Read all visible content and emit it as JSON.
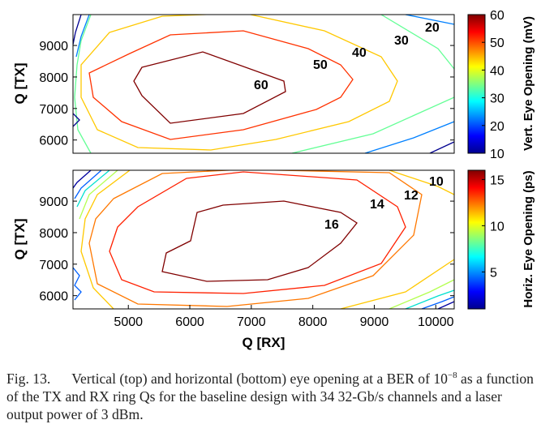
{
  "chart_data": [
    {
      "type": "contour",
      "panel": "top",
      "xlabel": "",
      "ylabel": "Q [TX]",
      "xlim": [
        4100,
        10300
      ],
      "ylim": [
        5580,
        9980
      ],
      "xticks": [],
      "yticks": [
        "6000",
        "7000",
        "8000",
        "9000"
      ],
      "colorbar": {
        "label": "Vert. Eye Opening (mV)",
        "range": [
          10,
          60
        ],
        "ticks": [
          "10",
          "20",
          "30",
          "40",
          "50",
          "60"
        ]
      },
      "contour_levels": [
        {
          "level": 60,
          "label": "60",
          "color": "#800000"
        },
        {
          "level": 50,
          "label": "50",
          "color": "#ff3200"
        },
        {
          "level": 40,
          "label": "40",
          "color": "#ffc800"
        },
        {
          "level": 30,
          "label": "30",
          "color": "#64ff96"
        },
        {
          "level": 20,
          "label": "20",
          "color": "#0080ff"
        },
        {
          "level": 10,
          "label": "",
          "color": "#000090"
        }
      ]
    },
    {
      "type": "contour",
      "panel": "bottom",
      "xlabel": "Q [RX]",
      "ylabel": "Q [TX]",
      "xlim": [
        4100,
        10300
      ],
      "ylim": [
        5580,
        9980
      ],
      "xticks": [
        "5000",
        "6000",
        "7000",
        "8000",
        "9000",
        "10000"
      ],
      "yticks": [
        "6000",
        "7000",
        "8000",
        "9000"
      ],
      "colorbar": {
        "label": "Horiz. Eye Opening (ps)",
        "range": [
          1,
          16
        ],
        "ticks": [
          "5",
          "10",
          "15"
        ]
      },
      "contour_levels": [
        {
          "level": 16,
          "label": "16",
          "color": "#800000"
        },
        {
          "level": 14,
          "label": "14",
          "color": "#ff2000"
        },
        {
          "level": 12,
          "label": "12",
          "color": "#ff7800"
        },
        {
          "level": 10,
          "label": "10",
          "color": "#ffc800"
        },
        {
          "level": 8,
          "label": "",
          "color": "#b4ff50"
        },
        {
          "level": 6,
          "label": "",
          "color": "#00e0d0"
        },
        {
          "level": 4,
          "label": "",
          "color": "#0060ff"
        },
        {
          "level": 2,
          "label": "",
          "color": "#0000a0"
        }
      ]
    }
  ],
  "caption": {
    "label": "Fig. 13.",
    "text_before_exp": "Vertical (top) and horizontal (bottom) eye opening at a BER of 10",
    "exponent": "−8",
    "text_after_exp": " as a function of the TX and RX ring Qs for the baseline design with 34 32-Gb/s channels and a laser output power of 3 dBm."
  }
}
